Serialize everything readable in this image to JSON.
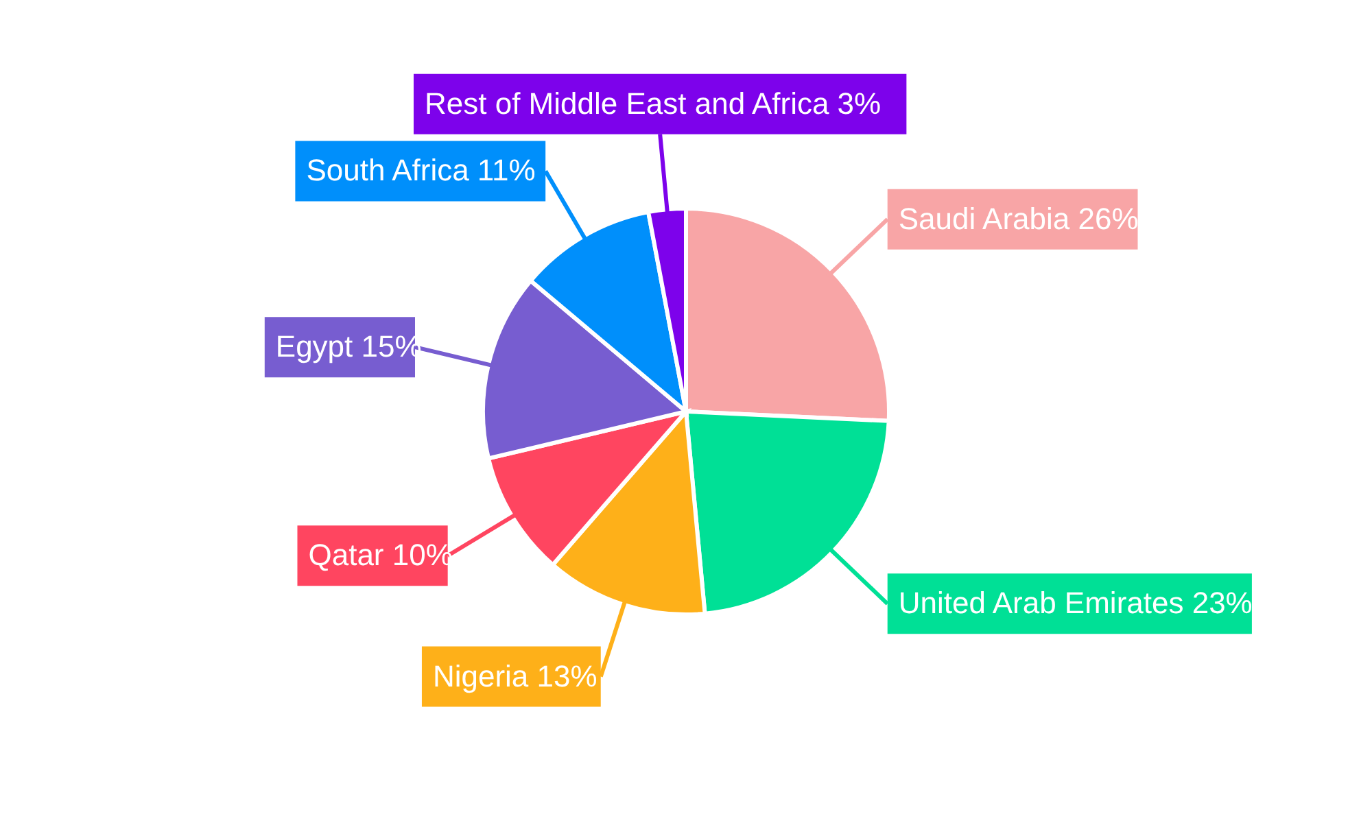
{
  "chart_data": {
    "type": "pie",
    "categories": [
      "Saudi Arabia",
      "United Arab Emirates",
      "Nigeria",
      "Qatar",
      "Egypt",
      "South Africa",
      "Rest of Middle East and Africa"
    ],
    "values": [
      26,
      23,
      13,
      10,
      15,
      11,
      3
    ],
    "value_labels": [
      "26%",
      "23%",
      "13%",
      "10%",
      "15%",
      "11%",
      "3%"
    ],
    "colors": [
      "#f8a5a6",
      "#00e096",
      "#feb019",
      "#ff4560",
      "#775dd0",
      "#008ffb",
      "#7d02eb"
    ]
  }
}
